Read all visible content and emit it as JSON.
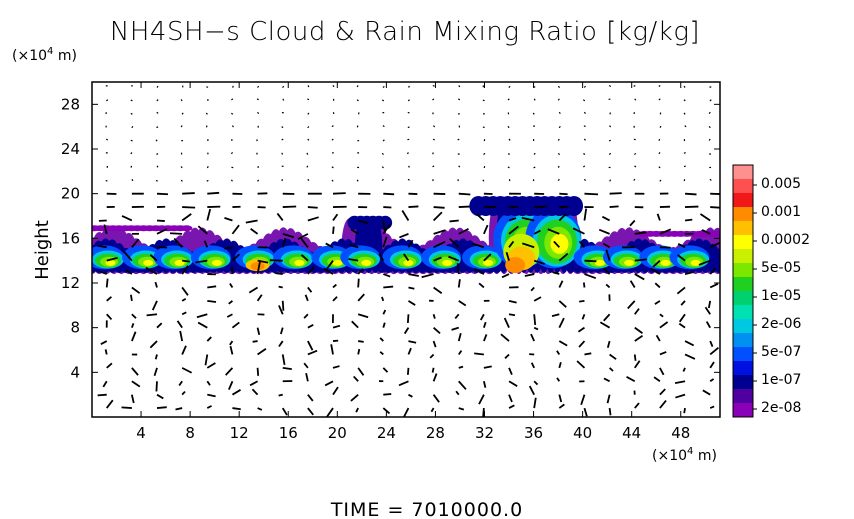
{
  "chart_data": {
    "type": "heatmap",
    "title": "NH4SH−s Cloud & Rain Mixing Ratio [kg/kg]",
    "ylabel": "Height",
    "x_unit": "(×10",
    "x_unit_exp": "4",
    "x_unit_tail": " m)",
    "y_unit": "(×10",
    "y_unit_exp": "4",
    "y_unit_tail": " m)",
    "xlim": [
      0,
      51.2
    ],
    "ylim": [
      0,
      30
    ],
    "x_ticks": [
      4,
      8,
      12,
      16,
      20,
      24,
      28,
      32,
      36,
      40,
      44,
      48
    ],
    "y_ticks": [
      4,
      8,
      12,
      16,
      20,
      24,
      28
    ],
    "colorbar": {
      "labels": [
        "0.005",
        "0.001",
        "0.0002",
        "5e-05",
        "1e-05",
        "2e-06",
        "5e-07",
        "1e-07",
        "2e-08"
      ],
      "colors": [
        "#ff9090",
        "#ff5050",
        "#f01818",
        "#ff8c00",
        "#ffc000",
        "#ffff00",
        "#c8f000",
        "#7ce800",
        "#20d020",
        "#00d070",
        "#00e0b0",
        "#00c8e0",
        "#0090f0",
        "#0050ff",
        "#0010e0",
        "#000090",
        "#5000a0",
        "#8a00b8"
      ]
    },
    "cloud_layer": {
      "base_height": 12.5,
      "top_height_typical": 16,
      "max_top_height": 19.8,
      "peak_region_x": [
        33,
        38
      ],
      "peak_value_class": "0.0002"
    },
    "footer": "TIME  =  7010000.0"
  }
}
